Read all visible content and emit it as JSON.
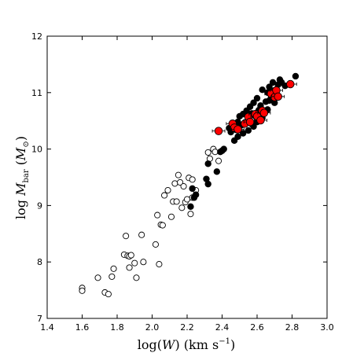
{
  "chart_data": {
    "type": "scatter",
    "xlim": [
      1.4,
      3.0
    ],
    "ylim": [
      7,
      12
    ],
    "xticks": [
      "1.4",
      "1.6",
      "1.8",
      "2.0",
      "2.2",
      "2.4",
      "2.6",
      "2.8",
      "3.0"
    ],
    "yticks": [
      "7",
      "8",
      "9",
      "10",
      "11",
      "12"
    ],
    "xlabel": "log(W)  (km s⁻¹)",
    "ylabel": "log  M_bar  (M_⊙)",
    "grid": false,
    "series": [
      {
        "marker": "open-circle",
        "color": "#000000",
        "points": [
          [
            1.6,
            7.54
          ],
          [
            1.6,
            7.49
          ],
          [
            1.69,
            7.72
          ],
          [
            1.73,
            7.46
          ],
          [
            1.75,
            7.43
          ],
          [
            1.77,
            7.74
          ],
          [
            1.78,
            7.88
          ],
          [
            1.84,
            8.13
          ],
          [
            1.85,
            8.46
          ],
          [
            1.86,
            8.11
          ],
          [
            1.87,
            8.1
          ],
          [
            1.87,
            7.9
          ],
          [
            1.88,
            8.12
          ],
          [
            1.9,
            7.98
          ],
          [
            1.91,
            7.72
          ],
          [
            1.94,
            8.48
          ],
          [
            1.95,
            8.0
          ],
          [
            2.02,
            8.31
          ],
          [
            2.03,
            8.83
          ],
          [
            2.04,
            7.96
          ],
          [
            2.05,
            8.66
          ],
          [
            2.06,
            8.65
          ],
          [
            2.07,
            9.18
          ],
          [
            2.09,
            9.27
          ],
          [
            2.11,
            8.8
          ],
          [
            2.12,
            9.07
          ],
          [
            2.13,
            9.39
          ],
          [
            2.14,
            9.07
          ],
          [
            2.15,
            9.54
          ],
          [
            2.16,
            9.41
          ],
          [
            2.17,
            8.96
          ],
          [
            2.18,
            9.34
          ],
          [
            2.19,
            9.06
          ],
          [
            2.2,
            9.11
          ],
          [
            2.21,
            9.49
          ],
          [
            2.22,
            8.85
          ],
          [
            2.23,
            9.46
          ],
          [
            2.23,
            9.14
          ],
          [
            2.25,
            9.27
          ],
          [
            2.32,
            9.94
          ],
          [
            2.33,
            9.83
          ],
          [
            2.35,
            10.0
          ],
          [
            2.36,
            9.95
          ],
          [
            2.38,
            9.79
          ]
        ]
      },
      {
        "marker": "filled-circle",
        "color": "#000000",
        "points": [
          [
            2.22,
            8.98
          ],
          [
            2.23,
            9.3
          ],
          [
            2.24,
            9.14
          ],
          [
            2.25,
            9.19
          ],
          [
            2.31,
            9.47
          ],
          [
            2.32,
            9.38
          ],
          [
            2.32,
            9.74
          ],
          [
            2.37,
            9.6
          ],
          [
            2.39,
            9.95
          ],
          [
            2.4,
            9.97
          ],
          [
            2.41,
            10.0
          ],
          [
            2.44,
            10.37
          ],
          [
            2.45,
            10.3
          ],
          [
            2.46,
            10.38
          ],
          [
            2.47,
            10.15
          ],
          [
            2.47,
            10.4
          ],
          [
            2.48,
            10.34
          ],
          [
            2.49,
            10.48
          ],
          [
            2.49,
            10.22
          ],
          [
            2.5,
            10.58
          ],
          [
            2.51,
            10.42
          ],
          [
            2.52,
            10.28
          ],
          [
            2.52,
            10.62
          ],
          [
            2.53,
            10.47
          ],
          [
            2.54,
            10.68
          ],
          [
            2.55,
            10.33
          ],
          [
            2.55,
            10.52
          ],
          [
            2.56,
            10.75
          ],
          [
            2.57,
            10.44
          ],
          [
            2.57,
            10.63
          ],
          [
            2.58,
            10.82
          ],
          [
            2.58,
            10.4
          ],
          [
            2.59,
            10.58
          ],
          [
            2.6,
            10.9
          ],
          [
            2.6,
            10.48
          ],
          [
            2.61,
            10.69
          ],
          [
            2.62,
            10.77
          ],
          [
            2.63,
            10.55
          ],
          [
            2.63,
            11.05
          ],
          [
            2.64,
            10.64
          ],
          [
            2.65,
            10.84
          ],
          [
            2.66,
            11.0
          ],
          [
            2.66,
            10.7
          ],
          [
            2.67,
            11.1
          ],
          [
            2.67,
            10.86
          ],
          [
            2.68,
            10.96
          ],
          [
            2.69,
            11.18
          ],
          [
            2.7,
            10.82
          ],
          [
            2.7,
            11.04
          ],
          [
            2.71,
            10.92
          ],
          [
            2.72,
            11.14
          ],
          [
            2.73,
            11.23
          ],
          [
            2.74,
            11.18
          ],
          [
            2.76,
            11.12
          ],
          [
            2.79,
            11.14
          ],
          [
            2.82,
            11.29
          ]
        ]
      },
      {
        "marker": "red-circle-errorbar",
        "color": "#ff0000",
        "points": [
          [
            2.38,
            10.32
          ],
          [
            2.46,
            10.45
          ],
          [
            2.47,
            10.38
          ],
          [
            2.49,
            10.35
          ],
          [
            2.53,
            10.45
          ],
          [
            2.55,
            10.57
          ],
          [
            2.56,
            10.48
          ],
          [
            2.59,
            10.62
          ],
          [
            2.6,
            10.58
          ],
          [
            2.62,
            10.51
          ],
          [
            2.63,
            10.68
          ],
          [
            2.64,
            10.64
          ],
          [
            2.68,
            10.98
          ],
          [
            2.7,
            10.92
          ],
          [
            2.71,
            11.04
          ],
          [
            2.72,
            10.93
          ],
          [
            2.79,
            11.15
          ]
        ]
      }
    ]
  }
}
